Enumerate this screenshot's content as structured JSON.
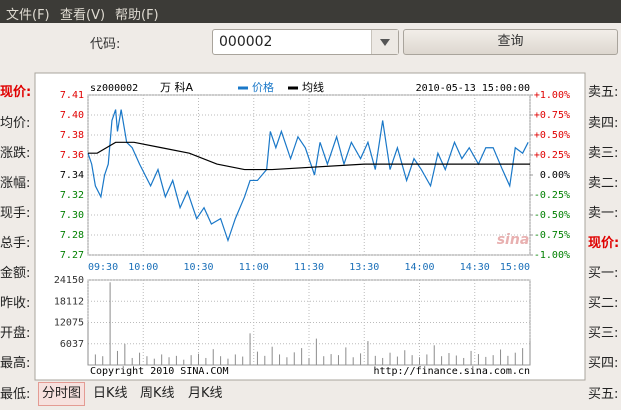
{
  "menu": [
    "文件(F)",
    "查看(V)",
    "帮助(F)"
  ],
  "search": {
    "label": "代码:",
    "code": "000002",
    "button": "查询"
  },
  "quote_labels_left": [
    "现价:",
    "均价:",
    "涨跌:",
    "涨幅:",
    "现手:",
    "总手:",
    "金额:",
    "昨收:",
    "开盘:",
    "最高:",
    "最低:"
  ],
  "quote_labels_right": [
    "卖五:",
    "卖四:",
    "卖三:",
    "卖二:",
    "卖一:",
    "现价:",
    "买一:",
    "买二:",
    "买三:",
    "买四:",
    "买五:"
  ],
  "tabs": [
    "分时图",
    "日K线",
    "周K线",
    "月K线"
  ],
  "chart_data": [
    {
      "type": "line",
      "stock_code": "sz000002",
      "stock_name": "万 科A",
      "timestamp": "2010-05-13 15:00:00",
      "watermark": "sina",
      "xlim": [
        0,
        240
      ],
      "xticks": [
        {
          "value": 0,
          "label": "09:30"
        },
        {
          "value": 30,
          "label": "10:00"
        },
        {
          "value": 60,
          "label": "10:30"
        },
        {
          "value": 90,
          "label": "11:00"
        },
        {
          "value": 120,
          "label": "11:30"
        },
        {
          "value": 150,
          "label": "13:30"
        },
        {
          "value": 180,
          "label": "14:00"
        },
        {
          "value": 210,
          "label": "14:30"
        },
        {
          "value": 240,
          "label": "15:00"
        }
      ],
      "ylim": [
        7.2666,
        7.4134
      ],
      "yticks": [
        {
          "value": 7.4134,
          "label": "7.41"
        },
        {
          "value": 7.3951,
          "label": "7.40"
        },
        {
          "value": 7.3767,
          "label": "7.38"
        },
        {
          "value": 7.3584,
          "label": "7.36"
        },
        7.34,
        {
          "value": 7.3217,
          "label": "7.32"
        },
        {
          "value": 7.3033,
          "label": "7.30"
        },
        {
          "value": 7.2849,
          "label": "7.28"
        },
        {
          "value": 7.2666,
          "label": "7.27"
        }
      ],
      "y2lim": [
        -1,
        1
      ],
      "y2ticks": [
        {
          "value": 1,
          "label": "+1.00%"
        },
        {
          "value": 0.75,
          "label": "+0.75%"
        },
        {
          "value": 0.5,
          "label": "+0.50%"
        },
        {
          "value": 0.25,
          "label": "+0.25%"
        },
        {
          "value": 0,
          "label": "0.00%"
        },
        {
          "value": -0.25,
          "label": "-0.25%"
        },
        {
          "value": -0.5,
          "label": "-0.50%"
        },
        {
          "value": -0.75,
          "label": "-0.75%"
        },
        {
          "value": -1,
          "label": "-1.00%"
        }
      ],
      "grid": true,
      "series": [
        {
          "name": "价格",
          "color": "#1a78c8",
          "x": [
            0,
            2,
            4,
            7,
            9,
            11,
            13,
            15,
            16,
            18,
            21,
            24,
            28,
            34,
            38,
            42,
            46,
            50,
            54,
            59,
            63,
            67,
            72,
            76,
            80,
            85,
            88,
            92,
            97,
            99,
            102,
            105,
            110,
            114,
            118,
            123,
            126,
            130,
            135,
            139,
            143,
            148,
            152,
            156,
            160,
            164,
            168,
            173,
            177,
            181,
            186,
            190,
            194,
            199,
            203,
            207,
            212,
            216,
            220,
            225,
            229,
            232,
            236,
            239
          ],
          "values": [
            7.36,
            7.35,
            7.33,
            7.32,
            7.34,
            7.35,
            7.39,
            7.4,
            7.38,
            7.4,
            7.37,
            7.365,
            7.35,
            7.33,
            7.345,
            7.32,
            7.335,
            7.31,
            7.325,
            7.3,
            7.31,
            7.295,
            7.3,
            7.28,
            7.3,
            7.32,
            7.335,
            7.335,
            7.345,
            7.38,
            7.365,
            7.38,
            7.355,
            7.375,
            7.365,
            7.34,
            7.37,
            7.35,
            7.375,
            7.35,
            7.37,
            7.355,
            7.37,
            7.345,
            7.39,
            7.345,
            7.365,
            7.335,
            7.355,
            7.345,
            7.33,
            7.36,
            7.345,
            7.37,
            7.355,
            7.365,
            7.35,
            7.365,
            7.365,
            7.345,
            7.33,
            7.365,
            7.36,
            7.37
          ]
        },
        {
          "name": "均线",
          "color": "#000000",
          "x": [
            0,
            5,
            10,
            15,
            25,
            40,
            55,
            70,
            85,
            100,
            150,
            240
          ],
          "values": [
            7.36,
            7.36,
            7.365,
            7.37,
            7.37,
            7.365,
            7.36,
            7.35,
            7.345,
            7.345,
            7.35,
            7.35
          ]
        }
      ]
    },
    {
      "type": "bar",
      "copyright": "Copyright 2010 SINA.COM",
      "source_url": "http://finance.sina.com.cn",
      "ylim": [
        0,
        24150
      ],
      "yticks": [
        6037,
        12075,
        18112,
        24150
      ],
      "grid": true,
      "color": "#8c8c8c",
      "x": [
        0,
        4,
        8,
        12,
        16,
        20,
        24,
        28,
        32,
        36,
        40,
        44,
        48,
        52,
        56,
        60,
        64,
        68,
        72,
        76,
        80,
        84,
        88,
        92,
        96,
        100,
        104,
        108,
        112,
        116,
        120,
        124,
        128,
        132,
        136,
        140,
        144,
        148,
        152,
        156,
        160,
        164,
        168,
        172,
        176,
        180,
        184,
        188,
        192,
        196,
        200,
        204,
        208,
        212,
        216,
        220,
        224,
        228,
        232,
        236,
        240
      ],
      "values": [
        12000,
        3000,
        2500,
        23500,
        4000,
        6000,
        2000,
        3500,
        2500,
        1800,
        3000,
        2200,
        2600,
        1500,
        2800,
        3200,
        2000,
        4500,
        2500,
        1800,
        3000,
        2400,
        9000,
        3800,
        2600,
        5200,
        3000,
        2200,
        3600,
        4800,
        2000,
        7500,
        2500,
        3100,
        2800,
        5000,
        2200,
        3300,
        6800,
        2600,
        2000,
        3500,
        2400,
        4200,
        2800,
        2200,
        3000,
        5600,
        2500,
        3400,
        2700,
        2000,
        4000,
        3100,
        2300,
        2800,
        4400,
        2600,
        3500,
        4800,
        7000
      ]
    }
  ]
}
